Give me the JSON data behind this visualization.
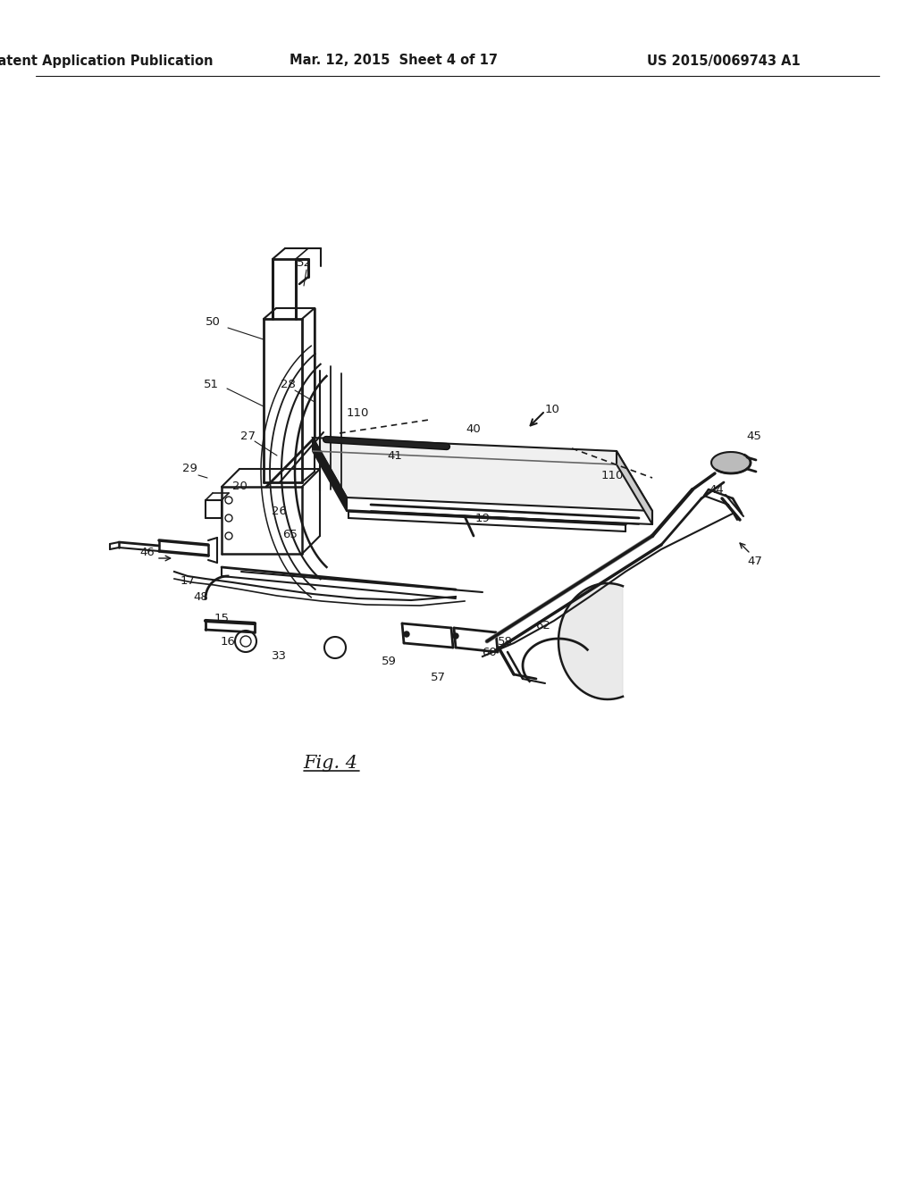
{
  "header_left": "Patent Application Publication",
  "header_center": "Mar. 12, 2015  Sheet 4 of 17",
  "header_right": "US 2015/0069743 A1",
  "figure_label": "Fig. 4",
  "background_color": "#ffffff",
  "line_color": "#1a1a1a",
  "header_fontsize": 10.5,
  "figure_label_fontsize": 15,
  "label_fontsize": 9.5
}
